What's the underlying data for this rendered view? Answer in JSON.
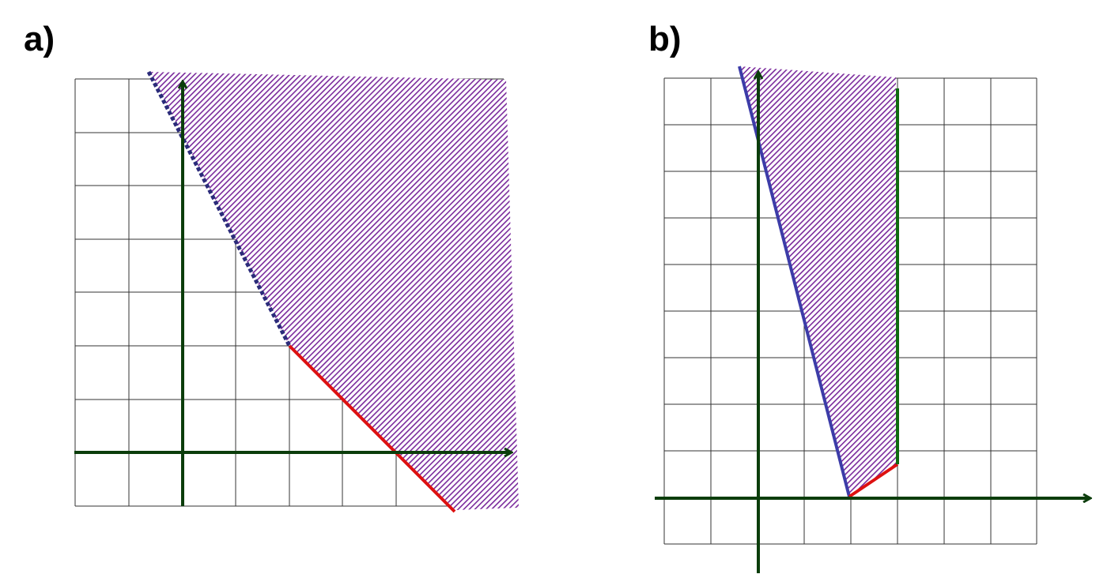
{
  "panels": {
    "a": {
      "label": "a)"
    },
    "b": {
      "label": "b)"
    }
  },
  "colors": {
    "grid": "#333333",
    "axes": "#0b3d0b",
    "region_fill": "#7a2a9c",
    "boundary_dashed": "#2b2b7a",
    "boundary_red": "#dd1111",
    "boundary_blue": "#3c3ca8",
    "boundary_green": "#0f6b0f"
  }
}
